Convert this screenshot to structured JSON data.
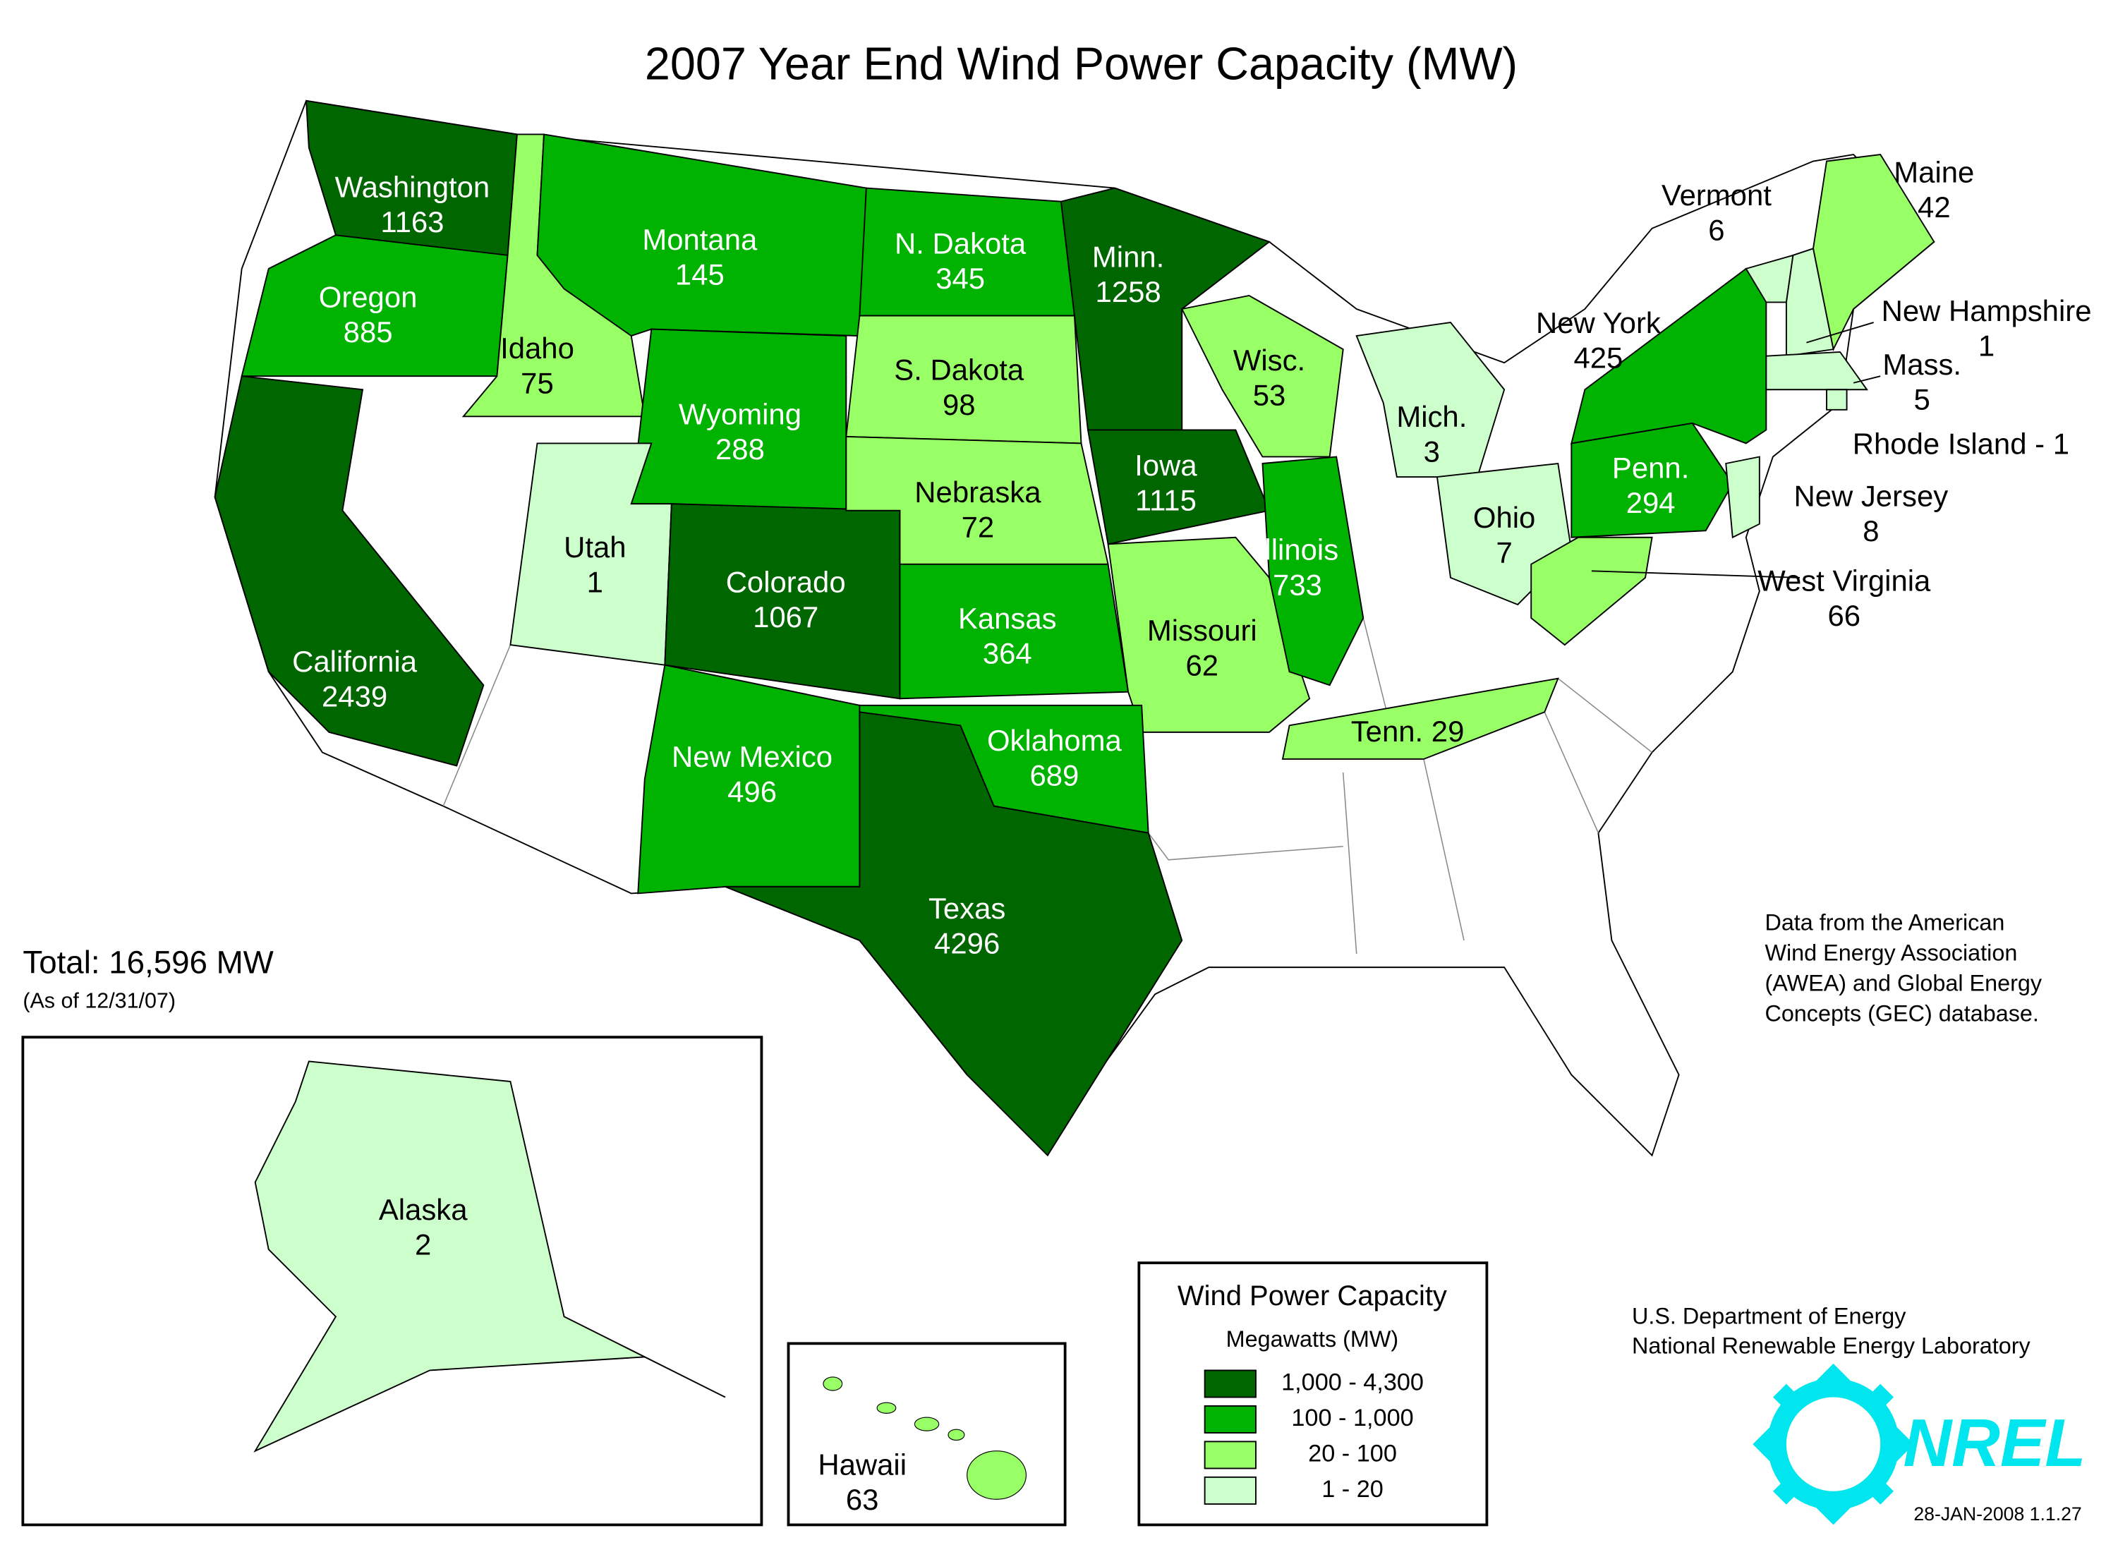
{
  "title": "2007 Year End Wind Power Capacity (MW)",
  "total": "Total:  16,596 MW",
  "as_of": "(As of 12/31/07)",
  "states": [
    {
      "name": "Washington",
      "value": 1163
    },
    {
      "name": "Oregon",
      "value": 885
    },
    {
      "name": "California",
      "value": 2439
    },
    {
      "name": "Idaho",
      "value": 75
    },
    {
      "name": "Montana",
      "value": 145
    },
    {
      "name": "N. Dakota",
      "value": 345
    },
    {
      "name": "Minn.",
      "value": 1258
    },
    {
      "name": "S. Dakota",
      "value": 98
    },
    {
      "name": "Wyoming",
      "value": 288
    },
    {
      "name": "Wisc.",
      "value": 53
    },
    {
      "name": "Iowa",
      "value": 1115
    },
    {
      "name": "Utah",
      "value": 1
    },
    {
      "name": "Colorado",
      "value": 1067
    },
    {
      "name": "Nebraska",
      "value": 72
    },
    {
      "name": "Kansas",
      "value": 364
    },
    {
      "name": "Missouri",
      "value": 62
    },
    {
      "name": "Illinois",
      "value": 733
    },
    {
      "name": "New Mexico",
      "value": 496
    },
    {
      "name": "Oklahoma",
      "value": 689
    },
    {
      "name": "Texas",
      "value": 4296
    },
    {
      "label": "Tenn.  29",
      "value": 29
    },
    {
      "name": "Mich.",
      "value": 3
    },
    {
      "name": "Ohio",
      "value": 7
    },
    {
      "name": "Penn.",
      "value": 294
    },
    {
      "name": "New York",
      "value": 425
    },
    {
      "name": "West Virginia",
      "value": 66
    },
    {
      "name": "New Jersey",
      "value": 8
    },
    {
      "name": "Vermont",
      "value": 6
    },
    {
      "name": "Maine",
      "value": 42
    },
    {
      "name": "New Hampshire",
      "value": 1
    },
    {
      "name": "Mass.",
      "value": 5
    },
    {
      "label": "Rhode Island - 1",
      "value": 1
    },
    {
      "name": "Alaska",
      "value": 2
    },
    {
      "name": "Hawaii",
      "value": 63
    }
  ],
  "legend": {
    "title": "Wind Power Capacity",
    "subtitle": "Megawatts (MW)",
    "items": [
      {
        "label": "1,000 - 4,300",
        "range": [
          1000,
          4300
        ],
        "color": "#006600"
      },
      {
        "label": "100 - 1,000",
        "range": [
          100,
          1000
        ],
        "color": "#00b300"
      },
      {
        "label": "20 - 100",
        "range": [
          20,
          100
        ],
        "color": "#99ff66"
      },
      {
        "label": "1 - 20",
        "range": [
          1,
          20
        ],
        "color": "#ccffcc"
      }
    ]
  },
  "source": [
    "Data from the American",
    "Wind Energy Association",
    "(AWEA) and Global Energy",
    "Concepts (GEC) database."
  ],
  "agency": [
    "U.S. Department of Energy",
    "National Renewable Energy Laboratory"
  ],
  "logo": "NREL",
  "stamp": "28-JAN-2008 1.1.27"
}
